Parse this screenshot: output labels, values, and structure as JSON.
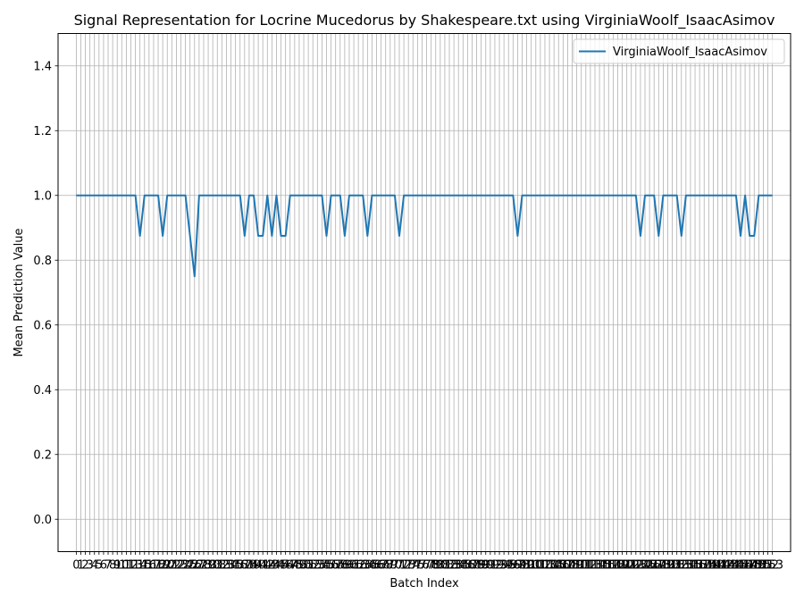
{
  "chart_data": {
    "type": "line",
    "title": "Signal Representation for Locrine Mucedorus by Shakespeare.txt using VirginiaWoolf_IsaacAsimov",
    "xlabel": "Batch Index",
    "ylabel": "Mean Prediction Value",
    "ylim": [
      -0.1,
      1.5
    ],
    "xlim": [
      -4,
      157
    ],
    "yticks": [
      0.0,
      0.2,
      0.4,
      0.6,
      0.8,
      1.0,
      1.2,
      1.4
    ],
    "grid": true,
    "legend": "top-right",
    "x_count": 154,
    "series": [
      {
        "name": "VirginiaWoolf_IsaacAsimov",
        "color": "#1f77b4",
        "values": [
          1,
          1,
          1,
          1,
          1,
          1,
          1,
          1,
          1,
          1,
          1,
          1,
          1,
          1,
          0.875,
          1,
          1,
          1,
          1,
          0.875,
          1,
          1,
          1,
          1,
          1,
          0.875,
          0.75,
          1,
          1,
          1,
          1,
          1,
          1,
          1,
          1,
          1,
          1,
          0.875,
          1,
          1,
          0.875,
          0.875,
          1,
          0.875,
          1,
          0.875,
          0.875,
          1,
          1,
          1,
          1,
          1,
          1,
          1,
          1,
          0.875,
          1,
          1,
          1,
          0.875,
          1,
          1,
          1,
          1,
          0.875,
          1,
          1,
          1,
          1,
          1,
          1,
          0.875,
          1,
          1,
          1,
          1,
          1,
          1,
          1,
          1,
          1,
          1,
          1,
          1,
          1,
          1,
          1,
          1,
          1,
          1,
          1,
          1,
          1,
          1,
          1,
          1,
          1,
          0.875,
          1,
          1,
          1,
          1,
          1,
          1,
          1,
          1,
          1,
          1,
          1,
          1,
          1,
          1,
          1,
          1,
          1,
          1,
          1,
          1,
          1,
          1,
          1,
          1,
          1,
          1,
          0.875,
          1,
          1,
          1,
          0.875,
          1,
          1,
          1,
          1,
          0.875,
          1,
          1,
          1,
          1,
          1,
          1,
          1,
          1,
          1,
          1,
          1,
          1,
          0.875,
          1,
          0.875,
          0.875,
          1,
          1,
          1,
          1
        ]
      }
    ]
  }
}
